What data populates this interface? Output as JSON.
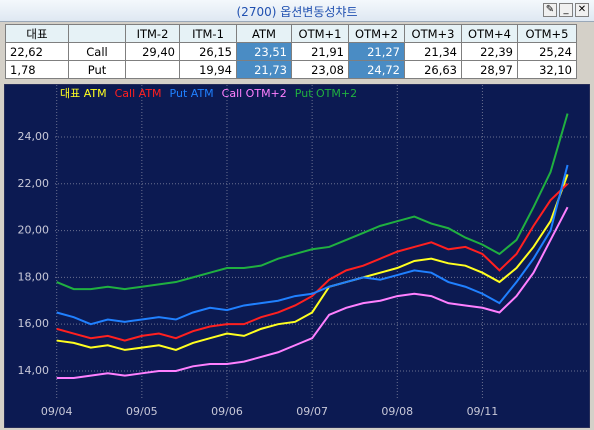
{
  "window": {
    "title": "(2700) 옵션변동성챠트"
  },
  "table": {
    "headers": [
      "대표",
      "ITM-2",
      "ITM-1",
      "ATM",
      "OTM+1",
      "OTM+2",
      "OTM+3",
      "OTM+4",
      "OTM+5"
    ],
    "rows": [
      [
        "22,62",
        "Call",
        "29,40",
        "26,15",
        "23,51",
        "21,91",
        "21,27",
        "21,34",
        "22,39",
        "25,24"
      ],
      [
        "1,78",
        "Put",
        null,
        "19,94",
        "21,73",
        "23,08",
        "24,72",
        "26,63",
        "28,97",
        "32,10"
      ]
    ]
  },
  "chart_data": {
    "type": "line",
    "series": [
      {
        "name": "대표 ATM",
        "color": "#ffff20",
        "values": [
          15.3,
          15.2,
          15.0,
          15.1,
          14.9,
          15.0,
          15.1,
          14.9,
          15.2,
          15.4,
          15.6,
          15.5,
          15.8,
          16.0,
          16.1,
          16.5,
          17.6,
          17.8,
          18.0,
          18.2,
          18.4,
          18.7,
          18.8,
          18.6,
          18.5,
          18.2,
          17.8,
          18.4,
          19.3,
          20.4,
          22.4
        ]
      },
      {
        "name": "Call ATM",
        "color": "#ff2020",
        "values": [
          15.8,
          15.6,
          15.4,
          15.5,
          15.3,
          15.5,
          15.6,
          15.4,
          15.7,
          15.9,
          16.0,
          16.0,
          16.3,
          16.5,
          16.8,
          17.2,
          17.9,
          18.3,
          18.5,
          18.8,
          19.1,
          19.3,
          19.5,
          19.2,
          19.3,
          19.0,
          18.3,
          19.0,
          20.2,
          21.3,
          22.0
        ]
      },
      {
        "name": "Put ATM",
        "color": "#2080ff",
        "values": [
          16.5,
          16.3,
          16.0,
          16.2,
          16.1,
          16.2,
          16.3,
          16.2,
          16.5,
          16.7,
          16.6,
          16.8,
          16.9,
          17.0,
          17.2,
          17.3,
          17.6,
          17.8,
          18.0,
          17.9,
          18.1,
          18.3,
          18.2,
          17.8,
          17.6,
          17.3,
          16.9,
          17.8,
          18.8,
          20.0,
          22.8
        ]
      },
      {
        "name": "Call OTM+2",
        "color": "#ff80ff",
        "values": [
          13.7,
          13.7,
          13.8,
          13.9,
          13.8,
          13.9,
          14.0,
          14.0,
          14.2,
          14.3,
          14.3,
          14.4,
          14.6,
          14.8,
          15.1,
          15.4,
          16.4,
          16.7,
          16.9,
          17.0,
          17.2,
          17.3,
          17.2,
          16.9,
          16.8,
          16.7,
          16.5,
          17.2,
          18.2,
          19.6,
          21.0
        ]
      },
      {
        "name": "Put OTM+2",
        "color": "#20b040",
        "values": [
          17.8,
          17.5,
          17.5,
          17.6,
          17.5,
          17.6,
          17.7,
          17.8,
          18.0,
          18.2,
          18.4,
          18.4,
          18.5,
          18.8,
          19.0,
          19.2,
          19.3,
          19.6,
          19.9,
          20.2,
          20.4,
          20.6,
          20.3,
          20.1,
          19.7,
          19.4,
          19.0,
          19.6,
          21.0,
          22.5,
          25.0
        ]
      }
    ],
    "xlim": [
      -0.1,
      31.2
    ],
    "xticks": [
      {
        "value": 0,
        "label": "09/04"
      },
      {
        "value": 5,
        "label": "09/05"
      },
      {
        "value": 10,
        "label": "09/06"
      },
      {
        "value": 15,
        "label": "09/07"
      },
      {
        "value": 20,
        "label": "09/08"
      },
      {
        "value": 25,
        "label": "09/11"
      }
    ],
    "ylim": [
      12.76,
      26.22
    ],
    "yticks": [
      {
        "value": 14,
        "label": "14,00"
      },
      {
        "value": 16,
        "label": "16,00"
      },
      {
        "value": 18,
        "label": "18,00"
      },
      {
        "value": 20,
        "label": "20,00"
      },
      {
        "value": 22,
        "label": "22,00"
      },
      {
        "value": 24,
        "label": "24,00"
      }
    ],
    "grid": true
  }
}
